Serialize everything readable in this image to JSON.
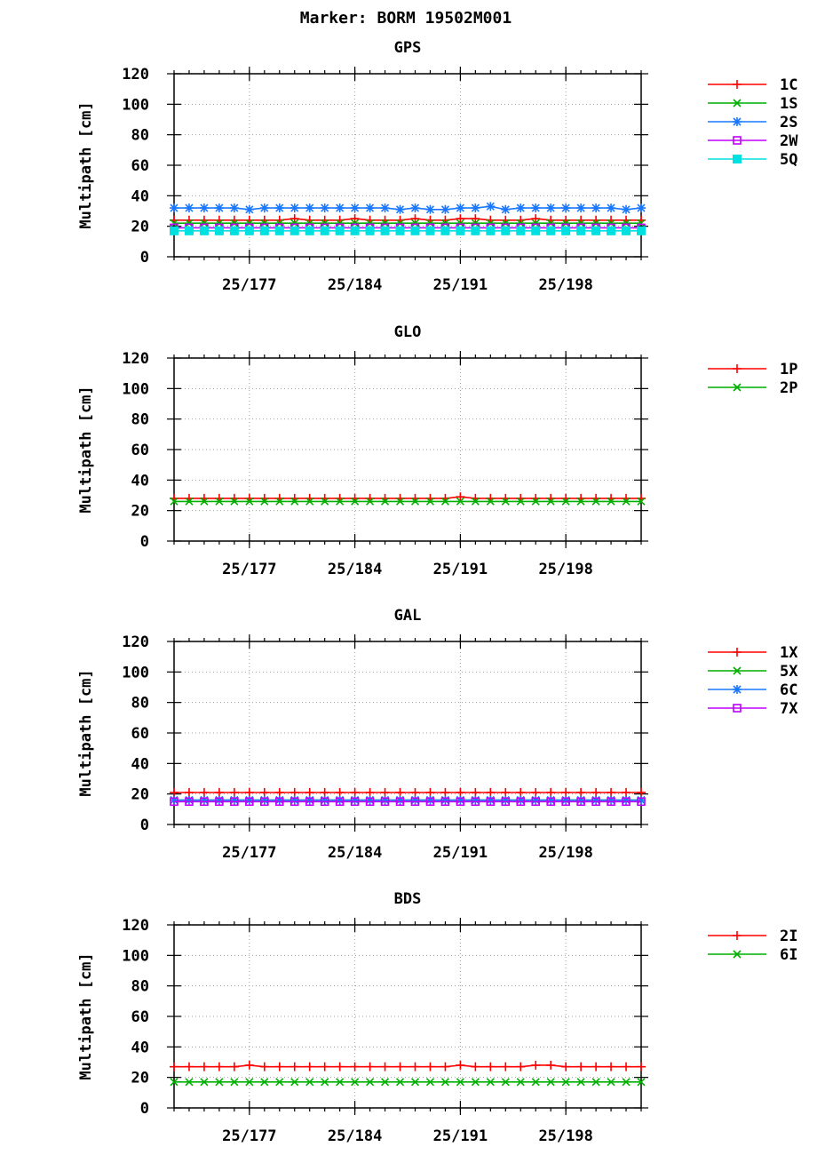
{
  "title": "Marker: BORM 19502M001",
  "chart_data": [
    {
      "type": "line",
      "title": "GPS",
      "ylabel": "Multipath [cm]",
      "ylim": [
        0,
        120
      ],
      "yticks": [
        "0",
        "20",
        "40",
        "60",
        "80",
        "100",
        "120"
      ],
      "xlim": [
        172,
        203
      ],
      "xticks": [
        {
          "x": 177,
          "label": "25/177"
        },
        {
          "x": 184,
          "label": "25/184"
        },
        {
          "x": 191,
          "label": "25/191"
        },
        {
          "x": 198,
          "label": "25/198"
        }
      ],
      "grid": true,
      "legend": "right",
      "x": [
        172,
        173,
        174,
        175,
        176,
        177,
        178,
        179,
        180,
        181,
        182,
        183,
        184,
        185,
        186,
        187,
        188,
        189,
        190,
        191,
        192,
        193,
        194,
        195,
        196,
        197,
        198,
        199,
        200,
        201,
        202,
        203
      ],
      "series": [
        {
          "name": "1C",
          "color": "#ff0000",
          "marker": "plus",
          "values": [
            24,
            24,
            24,
            24,
            24,
            24,
            24,
            24,
            25,
            24,
            24,
            24,
            25,
            24,
            24,
            24,
            25,
            24,
            24,
            25,
            25,
            24,
            24,
            24,
            25,
            24,
            24,
            24,
            24,
            24,
            24,
            24
          ]
        },
        {
          "name": "1S",
          "color": "#00b000",
          "marker": "cross",
          "values": [
            22,
            22,
            22,
            22,
            22,
            22,
            22,
            22,
            22,
            22,
            22,
            22,
            22,
            22,
            22,
            22,
            22,
            22,
            22,
            22,
            22,
            22,
            22,
            22,
            22,
            22,
            22,
            22,
            22,
            22,
            22,
            22
          ]
        },
        {
          "name": "2S",
          "color": "#1a78ff",
          "marker": "star",
          "values": [
            32,
            32,
            32,
            32,
            32,
            31,
            32,
            32,
            32,
            32,
            32,
            32,
            32,
            32,
            32,
            31,
            32,
            31,
            31,
            32,
            32,
            33,
            31,
            32,
            32,
            32,
            32,
            32,
            32,
            32,
            31,
            32
          ]
        },
        {
          "name": "2W",
          "color": "#c000ff",
          "marker": "square",
          "values": [
            19,
            19,
            19,
            19,
            19,
            19,
            19,
            19,
            19,
            19,
            19,
            19,
            19,
            19,
            19,
            19,
            19,
            19,
            19,
            19,
            19,
            19,
            19,
            19,
            19,
            19,
            19,
            19,
            19,
            19,
            19,
            19
          ]
        },
        {
          "name": "5Q",
          "color": "#00e0e0",
          "marker": "fsquare",
          "values": [
            17,
            17,
            17,
            17,
            17,
            17,
            17,
            17,
            17,
            17,
            17,
            17,
            17,
            17,
            17,
            17,
            17,
            17,
            17,
            17,
            17,
            17,
            17,
            17,
            17,
            17,
            17,
            17,
            17,
            17,
            17,
            17
          ]
        }
      ]
    },
    {
      "type": "line",
      "title": "GLO",
      "ylabel": "Multipath [cm]",
      "ylim": [
        0,
        120
      ],
      "yticks": [
        "0",
        "20",
        "40",
        "60",
        "80",
        "100",
        "120"
      ],
      "xlim": [
        172,
        203
      ],
      "xticks": [
        {
          "x": 177,
          "label": "25/177"
        },
        {
          "x": 184,
          "label": "25/184"
        },
        {
          "x": 191,
          "label": "25/191"
        },
        {
          "x": 198,
          "label": "25/198"
        }
      ],
      "grid": true,
      "legend": "right",
      "x": [
        172,
        173,
        174,
        175,
        176,
        177,
        178,
        179,
        180,
        181,
        182,
        183,
        184,
        185,
        186,
        187,
        188,
        189,
        190,
        191,
        192,
        193,
        194,
        195,
        196,
        197,
        198,
        199,
        200,
        201,
        202,
        203
      ],
      "series": [
        {
          "name": "1P",
          "color": "#ff0000",
          "marker": "plus",
          "values": [
            28,
            28,
            28,
            28,
            28,
            28,
            28,
            28,
            28,
            28,
            28,
            28,
            28,
            28,
            28,
            28,
            28,
            28,
            28,
            29,
            28,
            28,
            28,
            28,
            28,
            28,
            28,
            28,
            28,
            28,
            28,
            28
          ]
        },
        {
          "name": "2P",
          "color": "#00b000",
          "marker": "cross",
          "values": [
            26,
            26,
            26,
            26,
            26,
            26,
            26,
            26,
            26,
            26,
            26,
            26,
            26,
            26,
            26,
            26,
            26,
            26,
            26,
            26,
            26,
            26,
            26,
            26,
            26,
            26,
            26,
            26,
            26,
            26,
            26,
            26
          ]
        }
      ]
    },
    {
      "type": "line",
      "title": "GAL",
      "ylabel": "Multipath [cm]",
      "ylim": [
        0,
        120
      ],
      "yticks": [
        "0",
        "20",
        "40",
        "60",
        "80",
        "100",
        "120"
      ],
      "xlim": [
        172,
        203
      ],
      "xticks": [
        {
          "x": 177,
          "label": "25/177"
        },
        {
          "x": 184,
          "label": "25/184"
        },
        {
          "x": 191,
          "label": "25/191"
        },
        {
          "x": 198,
          "label": "25/198"
        }
      ],
      "grid": true,
      "legend": "right",
      "x": [
        172,
        173,
        174,
        175,
        176,
        177,
        178,
        179,
        180,
        181,
        182,
        183,
        184,
        185,
        186,
        187,
        188,
        189,
        190,
        191,
        192,
        193,
        194,
        195,
        196,
        197,
        198,
        199,
        200,
        201,
        202,
        203
      ],
      "series": [
        {
          "name": "1X",
          "color": "#ff0000",
          "marker": "plus",
          "values": [
            21,
            21,
            21,
            21,
            21,
            21,
            21,
            21,
            21,
            21,
            21,
            21,
            21,
            21,
            21,
            21,
            21,
            21,
            21,
            21,
            21,
            21,
            21,
            21,
            21,
            21,
            21,
            21,
            21,
            21,
            21,
            21
          ]
        },
        {
          "name": "5X",
          "color": "#00b000",
          "marker": "cross",
          "values": [
            16,
            16,
            16,
            16,
            16,
            16,
            16,
            16,
            16,
            16,
            16,
            16,
            16,
            16,
            16,
            16,
            16,
            16,
            16,
            16,
            16,
            16,
            16,
            16,
            16,
            16,
            16,
            16,
            16,
            16,
            16,
            16
          ]
        },
        {
          "name": "6C",
          "color": "#1a78ff",
          "marker": "star",
          "values": [
            16,
            16,
            16,
            16,
            16,
            16,
            16,
            16,
            16,
            16,
            16,
            16,
            16,
            16,
            16,
            16,
            16,
            16,
            16,
            16,
            16,
            16,
            16,
            16,
            16,
            16,
            16,
            16,
            16,
            16,
            16,
            16
          ]
        },
        {
          "name": "7X",
          "color": "#c000ff",
          "marker": "square",
          "values": [
            15,
            15,
            15,
            15,
            15,
            15,
            15,
            15,
            15,
            15,
            15,
            15,
            15,
            15,
            15,
            15,
            15,
            15,
            15,
            15,
            15,
            15,
            15,
            15,
            15,
            15,
            15,
            15,
            15,
            15,
            15,
            15
          ]
        }
      ]
    },
    {
      "type": "line",
      "title": "BDS",
      "ylabel": "Multipath [cm]",
      "ylim": [
        0,
        120
      ],
      "yticks": [
        "0",
        "20",
        "40",
        "60",
        "80",
        "100",
        "120"
      ],
      "xlim": [
        172,
        203
      ],
      "xticks": [
        {
          "x": 177,
          "label": "25/177"
        },
        {
          "x": 184,
          "label": "25/184"
        },
        {
          "x": 191,
          "label": "25/191"
        },
        {
          "x": 198,
          "label": "25/198"
        }
      ],
      "grid": true,
      "legend": "right",
      "x": [
        172,
        173,
        174,
        175,
        176,
        177,
        178,
        179,
        180,
        181,
        182,
        183,
        184,
        185,
        186,
        187,
        188,
        189,
        190,
        191,
        192,
        193,
        194,
        195,
        196,
        197,
        198,
        199,
        200,
        201,
        202,
        203
      ],
      "series": [
        {
          "name": "2I",
          "color": "#ff0000",
          "marker": "plus",
          "values": [
            27,
            27,
            27,
            27,
            27,
            28,
            27,
            27,
            27,
            27,
            27,
            27,
            27,
            27,
            27,
            27,
            27,
            27,
            27,
            28,
            27,
            27,
            27,
            27,
            28,
            28,
            27,
            27,
            27,
            27,
            27,
            27
          ]
        },
        {
          "name": "6I",
          "color": "#00b000",
          "marker": "cross",
          "values": [
            17,
            17,
            17,
            17,
            17,
            17,
            17,
            17,
            17,
            17,
            17,
            17,
            17,
            17,
            17,
            17,
            17,
            17,
            17,
            17,
            17,
            17,
            17,
            17,
            17,
            17,
            17,
            17,
            17,
            17,
            17,
            17
          ]
        }
      ]
    }
  ]
}
